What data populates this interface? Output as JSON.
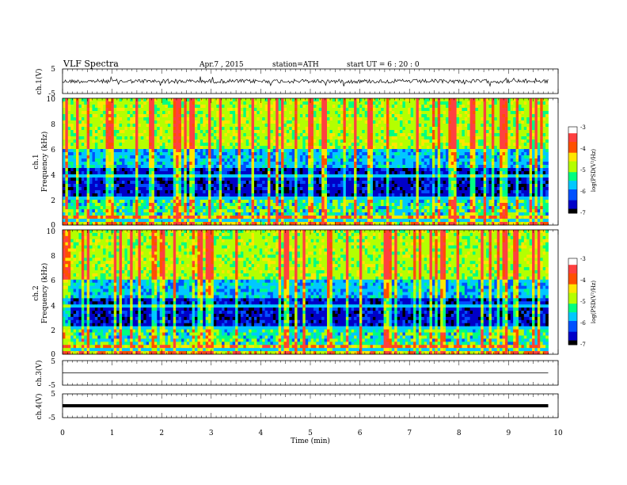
{
  "header": {
    "title": "VLF  Spectra",
    "date": "Apr.7  , 2015",
    "station": "station=ATH",
    "start": "start  UT  =    6  : 20 : 0"
  },
  "colors": {
    "colormap": [
      "#000000",
      "#0000c8",
      "#0050ff",
      "#00c8ff",
      "#00ff80",
      "#b4ff00",
      "#ffe600",
      "#ff5000",
      "#ff4040",
      "#ffffff"
    ]
  },
  "chart_data": [
    {
      "type": "line",
      "ylabel": "ch.1(V)",
      "yticks": [
        "5",
        "-5"
      ],
      "ylim": [
        -5,
        5
      ],
      "xlim": [
        0,
        10
      ],
      "data_xmax": 9.8,
      "description_level": "noisy waveform around ~0 V"
    },
    {
      "type": "heatmap",
      "ylabel_channel": "ch.1",
      "ylabel": "Frequency  (kHz)",
      "yticks": [
        "10",
        "8",
        "6",
        "4",
        "2",
        "0"
      ],
      "ylim": [
        0,
        10
      ],
      "xlim": [
        0,
        10
      ],
      "data_xmax": 9.8,
      "colorbar": {
        "label": "log(PSD(V²/Hz)",
        "ticks": [
          "-3",
          "-4",
          "-5",
          "-6",
          "-7"
        ],
        "range": [
          -7,
          -3
        ]
      }
    },
    {
      "type": "heatmap",
      "ylabel_channel": "ch.2",
      "ylabel": "Frequency  (kHz)",
      "yticks": [
        "10",
        "8",
        "6",
        "4",
        "2",
        "0"
      ],
      "ylim": [
        0,
        10
      ],
      "xlim": [
        0,
        10
      ],
      "data_xmax": 9.8,
      "colorbar": {
        "label": "log(PSD(V²/Hz)",
        "ticks": [
          "-3",
          "-4",
          "-5",
          "-6",
          "-7"
        ],
        "range": [
          -7,
          -3
        ]
      }
    },
    {
      "type": "line",
      "ylabel": "ch.3(V)",
      "yticks": [
        "5",
        "-5"
      ],
      "ylim": [
        -5,
        5
      ],
      "xlim": [
        0,
        10
      ],
      "data_xmax": 9.8,
      "level": 0
    },
    {
      "type": "line",
      "ylabel": "ch.4(V)",
      "yticks": [
        "5",
        "-5"
      ],
      "ylim": [
        -5,
        5
      ],
      "xlim": [
        0,
        10
      ],
      "data_xmax": 9.8,
      "level": 0
    }
  ],
  "xaxis": {
    "label": "Time  (min)",
    "ticks": [
      "0",
      "1",
      "2",
      "3",
      "4",
      "5",
      "6",
      "7",
      "8",
      "9",
      "10"
    ]
  }
}
